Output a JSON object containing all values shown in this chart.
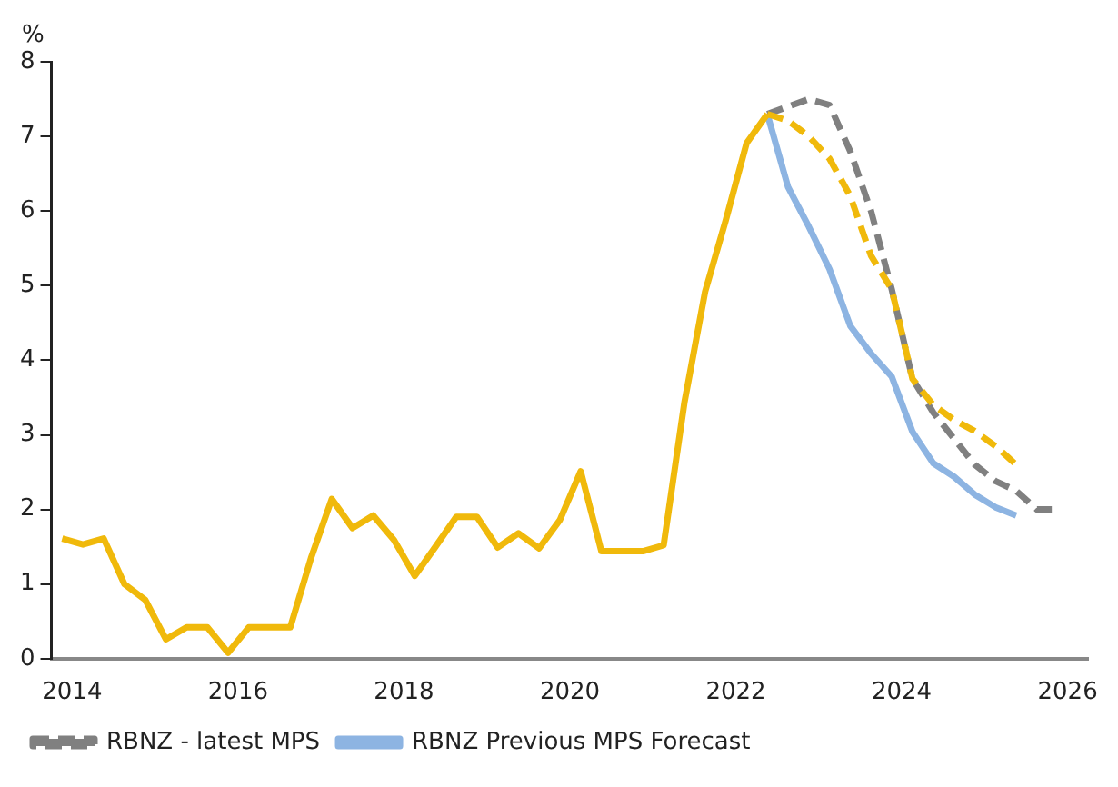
{
  "chart_data": {
    "type": "line",
    "ylabel": "%",
    "xlim": [
      2013.75,
      2026.25
    ],
    "xticks": [
      2014,
      2016,
      2018,
      2020,
      2022,
      2024,
      2026
    ],
    "ylim": [
      0,
      8
    ],
    "yticks": [
      0,
      1,
      2,
      3,
      4,
      5,
      6,
      7,
      8
    ],
    "grid": false,
    "legend": "bottom",
    "marker": "none",
    "series": [
      {
        "color": "#f0b90b",
        "line_style": "solid",
        "x": [
          2013.88,
          2014.13,
          2014.38,
          2014.63,
          2014.88,
          2015.13,
          2015.38,
          2015.63,
          2015.88,
          2016.13,
          2016.38,
          2016.63,
          2016.88,
          2017.13,
          2017.38,
          2017.63,
          2017.88,
          2018.13,
          2018.38,
          2018.63,
          2018.88,
          2019.13,
          2019.38,
          2019.63,
          2019.88,
          2020.13,
          2020.38,
          2020.63,
          2020.88,
          2021.13,
          2021.38,
          2021.63,
          2021.88,
          2022.13,
          2022.38
        ],
        "values": [
          1.61,
          1.53,
          1.61,
          1.0,
          0.79,
          0.26,
          0.42,
          0.42,
          0.08,
          0.42,
          0.42,
          0.42,
          1.35,
          2.14,
          1.75,
          1.92,
          1.59,
          1.11,
          1.5,
          1.9,
          1.9,
          1.49,
          1.68,
          1.48,
          1.86,
          2.51,
          1.44,
          1.44,
          1.44,
          1.52,
          3.43,
          4.92,
          5.88,
          6.91,
          7.3
        ]
      },
      {
        "color": "#f0b90b",
        "line_style": "dashed",
        "x": [
          2022.38,
          2022.63,
          2022.88,
          2023.13,
          2023.38,
          2023.63,
          2023.88,
          2024.13,
          2024.38,
          2024.63,
          2024.88,
          2025.13,
          2025.38
        ],
        "values": [
          7.3,
          7.21,
          7.0,
          6.7,
          6.2,
          5.4,
          4.95,
          3.75,
          3.4,
          3.2,
          3.05,
          2.85,
          2.6
        ]
      },
      {
        "name": "RBNZ - latest MPS",
        "color": "#808080",
        "line_style": "dashed",
        "x": [
          2022.38,
          2022.63,
          2022.88,
          2023.13,
          2023.38,
          2023.63,
          2023.88,
          2024.13,
          2024.38,
          2024.63,
          2024.88,
          2025.13,
          2025.38,
          2025.63,
          2025.88
        ],
        "values": [
          7.3,
          7.4,
          7.5,
          7.42,
          6.8,
          6.0,
          4.95,
          3.75,
          3.3,
          2.95,
          2.6,
          2.38,
          2.25,
          2.0,
          2.0
        ]
      },
      {
        "name": "RBNZ Previous MPS Forecast",
        "color": "#8db4e2",
        "line_style": "solid",
        "x": [
          2022.38,
          2022.63,
          2022.88,
          2023.13,
          2023.38,
          2023.63,
          2023.88,
          2024.13,
          2024.38,
          2024.63,
          2024.88,
          2025.13,
          2025.38
        ],
        "values": [
          7.3,
          6.32,
          5.79,
          5.22,
          4.46,
          4.09,
          3.78,
          3.04,
          2.62,
          2.44,
          2.2,
          2.03,
          1.92
        ]
      }
    ]
  }
}
